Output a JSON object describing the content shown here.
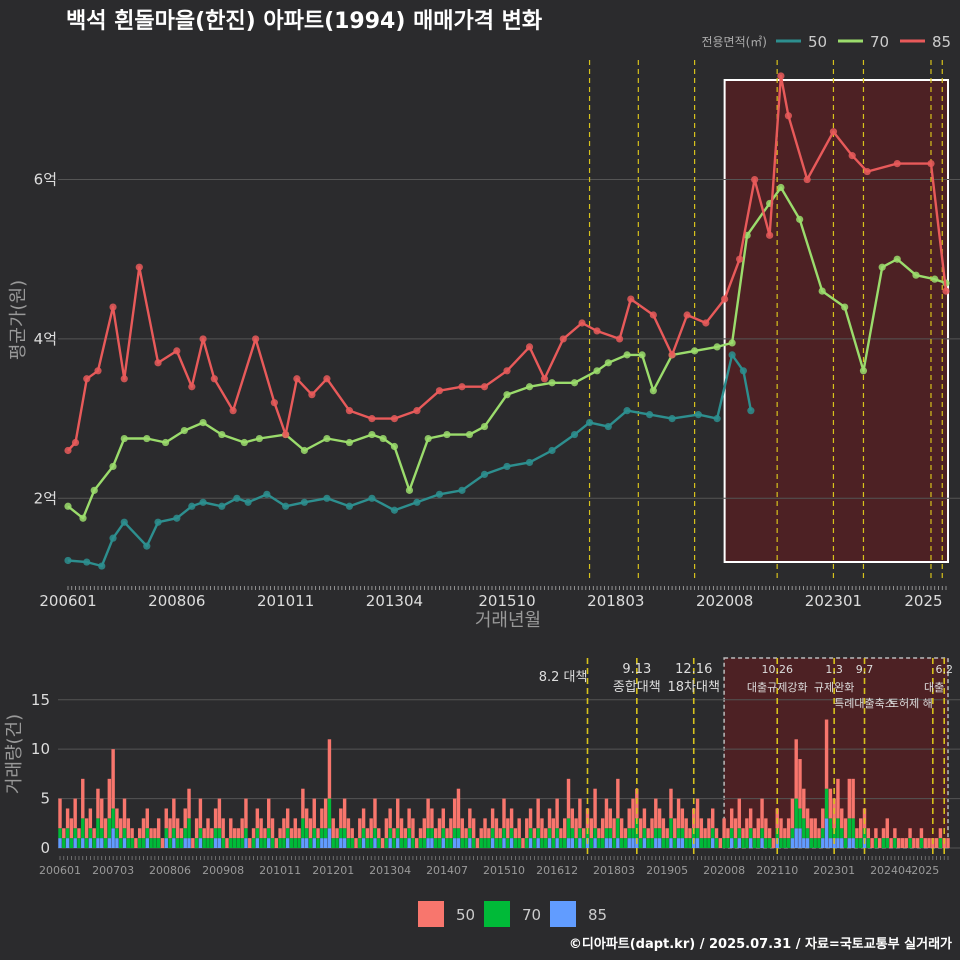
{
  "title": "백석 흰돌마을(한진) 아파트(1994) 매매가격 변화",
  "caption": "©디아파트(dapt.kr) / 2025.07.31 / 자료=국토교통부 실거래가",
  "colors": {
    "background": "#2b2b2d",
    "grid": "#555555",
    "event_line": "#d7c21c",
    "highlight_fill": "#5a1f22",
    "s50": "#2d8f8f",
    "s70": "#9bdc6c",
    "s85": "#e85a5a",
    "bar50": "#f8766d",
    "bar70": "#00ba38",
    "bar85": "#619cff"
  },
  "chart_data": [
    {
      "type": "line",
      "title": "백석 흰돌마을(한진) 아파트(1994) 매매가격 변화",
      "xlabel": "거래년월",
      "ylabel": "평균가(원)",
      "x_range": [
        "2006-01",
        "2025-07"
      ],
      "ylim": [
        1.0,
        7.5
      ],
      "y_ticks": [
        {
          "v": 2,
          "label": "2억"
        },
        {
          "v": 4,
          "label": "4억"
        },
        {
          "v": 6,
          "label": "6억"
        }
      ],
      "x_ticks": [
        "200601",
        "200806",
        "201011",
        "201304",
        "201510",
        "201803",
        "202008",
        "202301",
        "2025"
      ],
      "grid": true,
      "legend_position": "top-right",
      "legend_title": "전용면적(㎡)",
      "series": [
        {
          "name": "50",
          "color_key": "s50",
          "points": [
            [
              "2006-01",
              1.22
            ],
            [
              "2006-06",
              1.2
            ],
            [
              "2006-10",
              1.15
            ],
            [
              "2007-01",
              1.5
            ],
            [
              "2007-04",
              1.7
            ],
            [
              "2007-10",
              1.4
            ],
            [
              "2008-01",
              1.7
            ],
            [
              "2008-06",
              1.75
            ],
            [
              "2008-10",
              1.9
            ],
            [
              "2009-01",
              1.95
            ],
            [
              "2009-06",
              1.9
            ],
            [
              "2009-10",
              2.0
            ],
            [
              "2010-01",
              1.95
            ],
            [
              "2010-06",
              2.05
            ],
            [
              "2010-11",
              1.9
            ],
            [
              "2011-04",
              1.95
            ],
            [
              "2011-10",
              2.0
            ],
            [
              "2012-04",
              1.9
            ],
            [
              "2012-10",
              2.0
            ],
            [
              "2013-04",
              1.85
            ],
            [
              "2013-10",
              1.95
            ],
            [
              "2014-04",
              2.05
            ],
            [
              "2014-10",
              2.1
            ],
            [
              "2015-04",
              2.3
            ],
            [
              "2015-10",
              2.4
            ],
            [
              "2016-04",
              2.45
            ],
            [
              "2016-10",
              2.6
            ],
            [
              "2017-04",
              2.8
            ],
            [
              "2017-08",
              2.95
            ],
            [
              "2018-01",
              2.9
            ],
            [
              "2018-06",
              3.1
            ],
            [
              "2018-12",
              3.05
            ],
            [
              "2019-06",
              3.0
            ],
            [
              "2020-01",
              3.05
            ],
            [
              "2020-06",
              3.0
            ],
            [
              "2020-10",
              3.8
            ],
            [
              "2021-01",
              3.6
            ],
            [
              "2021-03",
              3.1
            ]
          ]
        },
        {
          "name": "70",
          "color_key": "s70",
          "points": [
            [
              "2006-01",
              1.9
            ],
            [
              "2006-05",
              1.75
            ],
            [
              "2006-08",
              2.1
            ],
            [
              "2007-01",
              2.4
            ],
            [
              "2007-04",
              2.75
            ],
            [
              "2007-10",
              2.75
            ],
            [
              "2008-03",
              2.7
            ],
            [
              "2008-08",
              2.85
            ],
            [
              "2009-01",
              2.95
            ],
            [
              "2009-06",
              2.8
            ],
            [
              "2009-12",
              2.7
            ],
            [
              "2010-04",
              2.75
            ],
            [
              "2010-11",
              2.8
            ],
            [
              "2011-04",
              2.6
            ],
            [
              "2011-10",
              2.75
            ],
            [
              "2012-04",
              2.7
            ],
            [
              "2012-10",
              2.8
            ],
            [
              "2013-01",
              2.75
            ],
            [
              "2013-04",
              2.65
            ],
            [
              "2013-08",
              2.1
            ],
            [
              "2014-01",
              2.75
            ],
            [
              "2014-06",
              2.8
            ],
            [
              "2014-12",
              2.8
            ],
            [
              "2015-04",
              2.9
            ],
            [
              "2015-10",
              3.3
            ],
            [
              "2016-04",
              3.4
            ],
            [
              "2016-10",
              3.45
            ],
            [
              "2017-04",
              3.45
            ],
            [
              "2017-10",
              3.6
            ],
            [
              "2018-01",
              3.7
            ],
            [
              "2018-06",
              3.8
            ],
            [
              "2018-10",
              3.8
            ],
            [
              "2019-01",
              3.35
            ],
            [
              "2019-06",
              3.8
            ],
            [
              "2019-12",
              3.85
            ],
            [
              "2020-06",
              3.9
            ],
            [
              "2020-10",
              3.95
            ],
            [
              "2021-02",
              5.3
            ],
            [
              "2021-08",
              5.7
            ],
            [
              "2021-11",
              5.9
            ],
            [
              "2022-04",
              5.5
            ],
            [
              "2022-10",
              4.6
            ],
            [
              "2023-04",
              4.4
            ],
            [
              "2023-09",
              3.6
            ],
            [
              "2024-02",
              4.9
            ],
            [
              "2024-06",
              5.0
            ],
            [
              "2024-11",
              4.8
            ],
            [
              "2025-04",
              4.75
            ],
            [
              "2025-07",
              4.7
            ]
          ]
        },
        {
          "name": "85",
          "color_key": "s85",
          "points": [
            [
              "2006-01",
              2.6
            ],
            [
              "2006-03",
              2.7
            ],
            [
              "2006-06",
              3.5
            ],
            [
              "2006-09",
              3.6
            ],
            [
              "2007-01",
              4.4
            ],
            [
              "2007-04",
              3.5
            ],
            [
              "2007-08",
              4.9
            ],
            [
              "2008-01",
              3.7
            ],
            [
              "2008-06",
              3.85
            ],
            [
              "2008-10",
              3.4
            ],
            [
              "2009-01",
              4.0
            ],
            [
              "2009-04",
              3.5
            ],
            [
              "2009-09",
              3.1
            ],
            [
              "2010-03",
              4.0
            ],
            [
              "2010-08",
              3.2
            ],
            [
              "2010-11",
              2.8
            ],
            [
              "2011-02",
              3.5
            ],
            [
              "2011-06",
              3.3
            ],
            [
              "2011-10",
              3.5
            ],
            [
              "2012-04",
              3.1
            ],
            [
              "2012-10",
              3.0
            ],
            [
              "2013-04",
              3.0
            ],
            [
              "2013-10",
              3.1
            ],
            [
              "2014-04",
              3.35
            ],
            [
              "2014-10",
              3.4
            ],
            [
              "2015-04",
              3.4
            ],
            [
              "2015-10",
              3.6
            ],
            [
              "2016-04",
              3.9
            ],
            [
              "2016-08",
              3.5
            ],
            [
              "2017-01",
              4.0
            ],
            [
              "2017-06",
              4.2
            ],
            [
              "2017-10",
              4.1
            ],
            [
              "2018-04",
              4.0
            ],
            [
              "2018-07",
              4.5
            ],
            [
              "2019-01",
              4.3
            ],
            [
              "2019-06",
              3.8
            ],
            [
              "2019-10",
              4.3
            ],
            [
              "2020-03",
              4.2
            ],
            [
              "2020-08",
              4.5
            ],
            [
              "2020-12",
              5.0
            ],
            [
              "2021-04",
              6.0
            ],
            [
              "2021-08",
              5.3
            ],
            [
              "2021-11",
              7.3
            ],
            [
              "2022-01",
              6.8
            ],
            [
              "2022-06",
              6.0
            ],
            [
              "2023-01",
              6.6
            ],
            [
              "2023-06",
              6.3
            ],
            [
              "2023-10",
              6.1
            ],
            [
              "2024-06",
              6.2
            ],
            [
              "2025-03",
              6.2
            ],
            [
              "2025-07",
              4.6
            ]
          ]
        }
      ]
    },
    {
      "type": "bar",
      "ylabel": "거래량(건)",
      "ylim": [
        0,
        17
      ],
      "y_ticks": [
        0,
        5,
        10,
        15
      ],
      "x_ticks": [
        "200601",
        "200703",
        "200806",
        "200908",
        "201011",
        "201201",
        "201304",
        "201407",
        "201510",
        "201612",
        "201803",
        "201905",
        "202008",
        "202110",
        "202301",
        "202404",
        "2025"
      ],
      "stacked": true,
      "legend_position": "bottom",
      "series": [
        {
          "name": "50",
          "color_key": "bar50"
        },
        {
          "name": "70",
          "color_key": "bar70"
        },
        {
          "name": "85",
          "color_key": "bar85"
        }
      ],
      "monthly_totals": [
        5,
        2,
        4,
        3,
        5,
        2,
        7,
        3,
        4,
        2,
        6,
        5,
        3,
        7,
        10,
        4,
        3,
        5,
        3,
        2,
        1,
        2,
        3,
        4,
        2,
        2,
        3,
        1,
        4,
        3,
        5,
        3,
        2,
        4,
        6,
        1,
        3,
        5,
        2,
        3,
        2,
        4,
        5,
        3,
        1,
        3,
        2,
        2,
        3,
        5,
        1,
        2,
        4,
        3,
        2,
        5,
        3,
        1,
        2,
        3,
        4,
        2,
        3,
        2,
        6,
        4,
        3,
        5,
        2,
        4,
        5,
        11,
        3,
        2,
        4,
        5,
        3,
        2,
        1,
        3,
        4,
        2,
        3,
        5,
        2,
        1,
        3,
        4,
        2,
        5,
        3,
        2,
        4,
        3,
        1,
        2,
        3,
        5,
        4,
        2,
        3,
        4,
        2,
        3,
        5,
        6,
        3,
        2,
        4,
        3,
        1,
        2,
        3,
        2,
        4,
        3,
        2,
        5,
        3,
        4,
        2,
        3,
        1,
        3,
        4,
        2,
        5,
        3,
        2,
        4,
        3,
        5,
        2,
        3,
        7,
        4,
        3,
        5,
        2,
        4,
        3,
        6,
        2,
        3,
        5,
        4,
        3,
        7,
        3,
        2,
        4,
        5,
        6,
        3,
        4,
        2,
        3,
        5,
        4,
        3,
        2,
        6,
        3,
        5,
        4,
        3,
        2,
        4,
        5,
        3,
        2,
        3,
        4,
        2,
        1,
        3,
        2,
        4,
        3,
        5,
        2,
        3,
        4,
        2,
        3,
        5,
        3,
        2,
        1,
        4,
        3,
        2,
        3,
        5,
        11,
        9,
        6,
        4,
        3,
        3,
        2,
        4,
        13,
        6,
        5,
        7,
        4,
        3,
        7,
        7,
        2,
        3,
        4,
        2,
        1,
        2,
        1,
        2,
        3,
        1,
        2,
        1,
        1,
        1,
        2,
        1,
        1,
        2,
        1,
        1,
        1,
        1,
        2,
        1,
        1,
        1,
        1,
        1,
        2,
        1,
        1,
        1,
        1,
        2,
        1,
        1,
        1,
        2,
        1,
        1,
        1,
        1,
        1,
        2,
        1,
        1,
        1,
        1,
        2,
        1,
        1,
        2,
        1,
        1,
        1,
        1,
        2,
        1,
        1,
        1,
        1,
        3,
        1,
        2,
        1,
        1,
        3,
        1
      ]
    }
  ],
  "events": [
    {
      "date": "2017-08",
      "top": "8.2 대책",
      "bottom": ""
    },
    {
      "date": "2018-09",
      "top": "9.13",
      "bottom": "종합대책"
    },
    {
      "date": "2019-12",
      "top": "12.16",
      "bottom": "18차대책"
    },
    {
      "date": "2021-10",
      "top": "10.26",
      "bottom": "대출규제강화"
    },
    {
      "date": "2023-01",
      "top": "1.3",
      "bottom": "규제완화"
    },
    {
      "date": "2023-09",
      "top": "9.7",
      "bottom": "특례대출축소"
    },
    {
      "date": "2025-03",
      "top": "",
      "bottom": "토허제 해"
    },
    {
      "date": "2025-06",
      "top": "6.2",
      "bottom": "대출"
    }
  ],
  "highlight_range": [
    "2020-08",
    "2025-07"
  ],
  "legend": {
    "top_title": "전용면적(㎡)",
    "top_items": [
      "50",
      "70",
      "85"
    ],
    "bottom_items": [
      "50",
      "70",
      "85"
    ]
  }
}
